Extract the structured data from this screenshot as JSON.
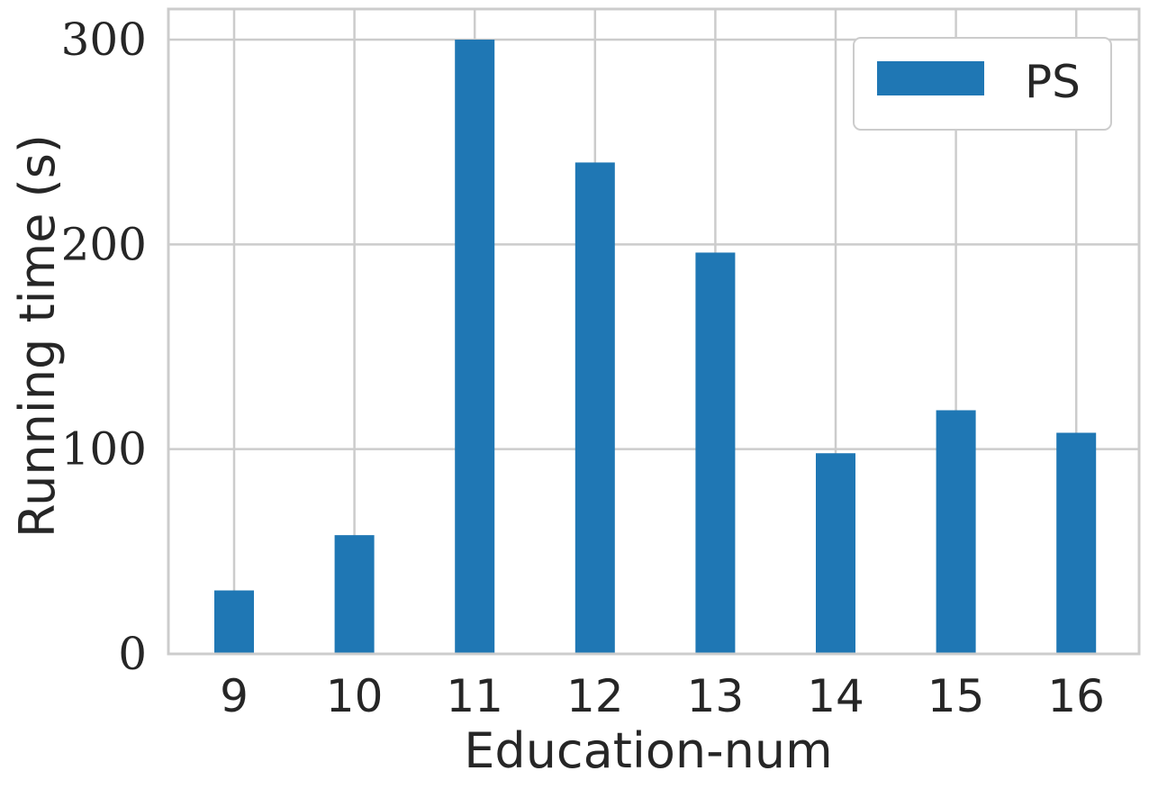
{
  "chart_data": {
    "type": "bar",
    "categories": [
      "9",
      "10",
      "11",
      "12",
      "13",
      "14",
      "15",
      "16"
    ],
    "series": [
      {
        "name": "PS",
        "values": [
          31,
          58,
          300,
          240,
          196,
          98,
          119,
          108
        ],
        "color": "#1f77b4"
      }
    ],
    "xlabel": "Education-num",
    "ylabel": "Running time (s)",
    "yticks": [
      "0",
      "100",
      "200",
      "300"
    ],
    "ylim": [
      0,
      315
    ],
    "grid": true,
    "legend_position": "top-right"
  }
}
